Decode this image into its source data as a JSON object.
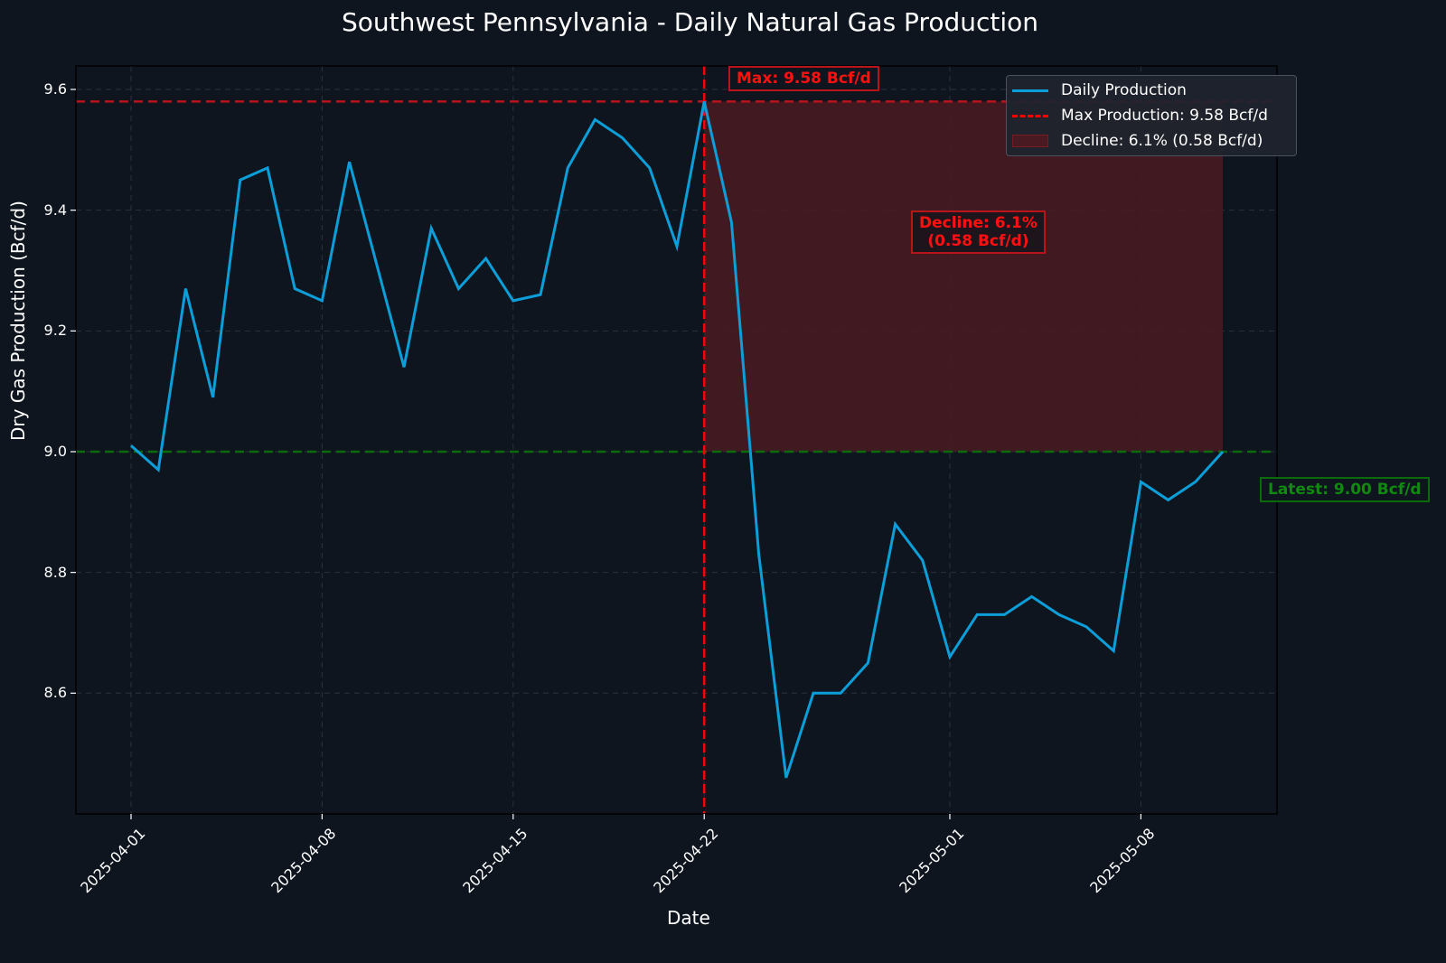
{
  "chart_data": {
    "type": "line",
    "title": "Southwest Pennsylvania - Daily Natural Gas Production",
    "xlabel": "Date",
    "ylabel": "Dry Gas Production (Bcf/d)",
    "ylim": [
      8.4,
      9.64
    ],
    "yticks": [
      "8.6",
      "8.8",
      "9.0",
      "9.2",
      "9.4",
      "9.6"
    ],
    "xticks": [
      "2025-04-01",
      "2025-04-08",
      "2025-04-15",
      "2025-04-22",
      "2025-05-01",
      "2025-05-08"
    ],
    "grid": true,
    "legend_position": "upper right",
    "x": [
      "2025-04-01",
      "2025-04-02",
      "2025-04-03",
      "2025-04-04",
      "2025-04-05",
      "2025-04-06",
      "2025-04-07",
      "2025-04-08",
      "2025-04-09",
      "2025-04-10",
      "2025-04-11",
      "2025-04-12",
      "2025-04-13",
      "2025-04-14",
      "2025-04-15",
      "2025-04-16",
      "2025-04-17",
      "2025-04-18",
      "2025-04-19",
      "2025-04-20",
      "2025-04-21",
      "2025-04-22",
      "2025-04-23",
      "2025-04-24",
      "2025-04-25",
      "2025-04-26",
      "2025-04-27",
      "2025-04-28",
      "2025-04-29",
      "2025-04-30",
      "2025-05-01",
      "2025-05-02",
      "2025-05-03",
      "2025-05-04",
      "2025-05-05",
      "2025-05-06",
      "2025-05-07",
      "2025-05-08",
      "2025-05-09",
      "2025-05-10",
      "2025-05-11"
    ],
    "series": [
      {
        "name": "Daily Production",
        "color": "#0c9ed8",
        "values": [
          9.01,
          8.97,
          9.27,
          9.09,
          9.45,
          9.47,
          9.27,
          9.25,
          9.48,
          9.31,
          9.14,
          9.37,
          9.27,
          9.32,
          9.25,
          9.26,
          9.47,
          9.55,
          9.52,
          9.47,
          9.34,
          9.58,
          9.38,
          8.83,
          8.46,
          8.6,
          8.6,
          8.65,
          8.88,
          8.82,
          8.66,
          8.73,
          8.73,
          8.76,
          8.73,
          8.71,
          8.67,
          8.95,
          8.92,
          8.95,
          9.0
        ]
      }
    ],
    "reference_lines": [
      {
        "name": "Max Production: 9.58 Bcf/d",
        "orientation": "horizontal",
        "value": 9.58,
        "color": "#b8141a",
        "style": "dashed"
      },
      {
        "name": "Latest",
        "orientation": "horizontal",
        "value": 9.0,
        "color": "#0b6b0b",
        "style": "dashed"
      },
      {
        "name": "Max date",
        "orientation": "vertical",
        "value": "2025-04-22",
        "color": "#ff0000",
        "style": "dashed"
      }
    ],
    "shaded_region": {
      "name": "Decline: 6.1% (0.58 Bcf/d)",
      "x_from": "2025-04-22",
      "x_to": "2025-05-11",
      "y_from": 9.0,
      "y_to": 9.58,
      "color": "#4a1a22"
    },
    "annotations": [
      {
        "text": "Max: 9.58 Bcf/d",
        "color": "#ff1010"
      },
      {
        "text": "Decline: 6.1%\n(0.58 Bcf/d)",
        "color": "#ff1010"
      },
      {
        "text": "Latest: 9.00 Bcf/d",
        "color": "#0f8a0f"
      }
    ]
  },
  "labels": {
    "title": "Southwest Pennsylvania - Daily Natural Gas Production",
    "xlabel": "Date",
    "ylabel": "Dry Gas Production (Bcf/d)",
    "legend": {
      "daily": "Daily Production",
      "max": "Max Production: 9.58 Bcf/d",
      "decline": "Decline: 6.1% (0.58 Bcf/d)"
    },
    "ann_max": "Max: 9.58 Bcf/d",
    "ann_decline_1": "Decline: 6.1%",
    "ann_decline_2": "(0.58 Bcf/d)",
    "ann_latest": "Latest: 9.00 Bcf/d"
  }
}
